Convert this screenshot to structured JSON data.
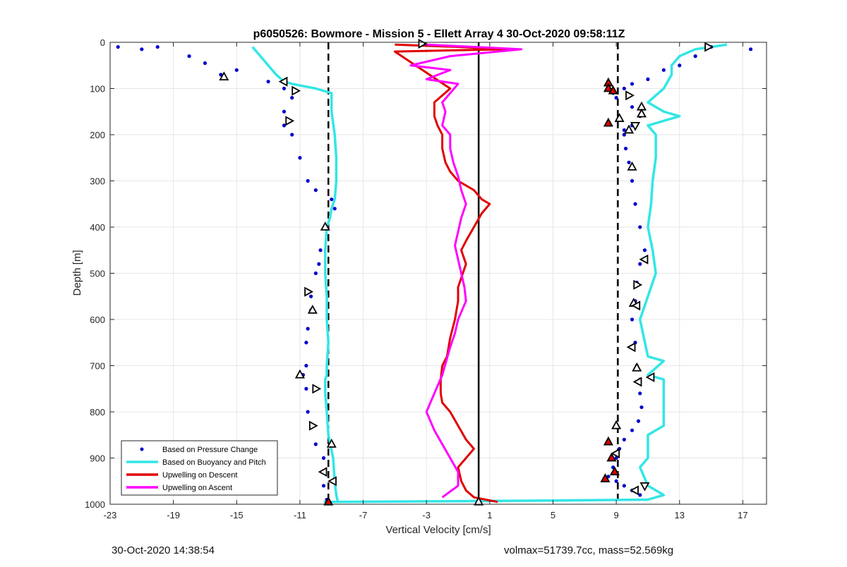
{
  "chart_data": {
    "type": "scatter",
    "title": "p6050526: Bowmore - Mission 5 - Ellett Array 4 30-Oct-2020 09:58:11Z",
    "xlabel": "Vertical Velocity [cm/s]",
    "ylabel": "Depth [m]",
    "xlim": [
      -23,
      18.5
    ],
    "ylim": [
      1000,
      0
    ],
    "y_reversed": true,
    "xticks": [
      "-23",
      "-19",
      "-15",
      "-11",
      "-7",
      "-3",
      "1",
      "5",
      "9",
      "13",
      "17"
    ],
    "yticks": [
      "0",
      "100",
      "200",
      "300",
      "400",
      "500",
      "600",
      "700",
      "800",
      "900",
      "1000"
    ],
    "grid": true,
    "legend_position": "bottom-left",
    "legend": [
      {
        "label": "Based on Pressure Change",
        "color": "#0000cd",
        "marker": "point"
      },
      {
        "label": "Based on Buoyancy and Pitch",
        "color": "#33e6e6",
        "marker": "line"
      },
      {
        "label": "Upwelling on Descent",
        "color": "#e00000",
        "marker": "line"
      },
      {
        "label": "Upwelling on Ascent",
        "color": "#ff00ff",
        "marker": "line"
      }
    ],
    "reference_lines": [
      {
        "x": 0.3,
        "style": "solid",
        "color": "#000000"
      },
      {
        "x": -9.2,
        "style": "dashed",
        "color": "#000000"
      },
      {
        "x": 9.1,
        "style": "dashed",
        "color": "#000000"
      }
    ],
    "series": [
      {
        "name": "Based on Buoyancy and Pitch",
        "profile": "descent",
        "color": "#33e6e6",
        "x": [
          -14.0,
          -13.5,
          -13.0,
          -12.5,
          -12.0,
          -11.5,
          -10.0,
          -9.0,
          -9.0,
          -8.8,
          -8.7,
          -8.7,
          -8.8,
          -9.0,
          -9.1,
          -9.3,
          -9.4,
          -9.4,
          -9.3,
          -9.3,
          -9.2,
          -9.3,
          -9.3,
          -9.4,
          -9.4,
          -9.3,
          -9.2,
          -8.9,
          -8.8,
          -8.7,
          -8.6
        ],
        "y": [
          10,
          30,
          50,
          70,
          85,
          90,
          100,
          110,
          150,
          200,
          250,
          300,
          340,
          360,
          380,
          400,
          450,
          500,
          550,
          600,
          650,
          700,
          720,
          730,
          760,
          800,
          850,
          900,
          950,
          980,
          995
        ]
      },
      {
        "name": "Based on Buoyancy and Pitch",
        "profile": "ascent",
        "color": "#33e6e6",
        "x": [
          16.0,
          14.0,
          13.0,
          12.5,
          12.5,
          12.0,
          11.0,
          12.0,
          13.0,
          11.0,
          11.5,
          11.5,
          11.3,
          11.2,
          11.0,
          11.3,
          11.5,
          11.0,
          10.5,
          11.0,
          12.0,
          11.0,
          12.0,
          12.0,
          12.0,
          11.0,
          11.0,
          10.5,
          11.0,
          12.0,
          11.0,
          5.0,
          1.0,
          -9.5
        ],
        "y": [
          5,
          15,
          30,
          50,
          70,
          100,
          130,
          150,
          160,
          180,
          200,
          250,
          300,
          350,
          400,
          450,
          500,
          550,
          600,
          680,
          690,
          720,
          730,
          780,
          830,
          850,
          900,
          920,
          960,
          980,
          990,
          992,
          993,
          995
        ]
      },
      {
        "name": "Based on Pressure Change",
        "profile": "descent",
        "color": "#0000cd",
        "x": [
          -22.5,
          -21.0,
          -20.0,
          -18.0,
          -17.0,
          -16.0,
          -15.0,
          -13.0,
          -12.0,
          -11.5,
          -12.0,
          -12.0,
          -11.5,
          -11.0,
          -10.5,
          -10.0,
          -9.0,
          -8.8,
          -9.3,
          -9.7,
          -9.8,
          -10.0,
          -10.3,
          -10.3,
          -10.5,
          -10.6,
          -10.6,
          -10.8,
          -10.6,
          -10.5,
          -10.2,
          -10.0,
          -9.5,
          -9.5,
          -9.5,
          -9.3
        ],
        "y": [
          10,
          15,
          10,
          30,
          45,
          70,
          60,
          85,
          100,
          120,
          150,
          180,
          200,
          250,
          300,
          320,
          340,
          360,
          400,
          450,
          480,
          500,
          550,
          580,
          620,
          650,
          700,
          720,
          750,
          800,
          830,
          870,
          900,
          930,
          960,
          990
        ]
      },
      {
        "name": "Based on Pressure Change",
        "profile": "ascent",
        "color": "#0000cd",
        "x": [
          17.5,
          15.0,
          14.0,
          13.0,
          12.0,
          11.0,
          10.0,
          9.5,
          8.8,
          9.0,
          10.0,
          10.5,
          10.0,
          9.5,
          9.5,
          9.6,
          9.8,
          10.0,
          10.2,
          10.5,
          10.8,
          10.5,
          10.3,
          10.2,
          10.0,
          10.2,
          10.3,
          10.5,
          10.5,
          10.6,
          10.4,
          10.0,
          9.5,
          9.2,
          9.0,
          8.8,
          8.5,
          9.0,
          9.5,
          10.0,
          10.5
        ],
        "y": [
          15,
          10,
          30,
          50,
          60,
          80,
          90,
          100,
          110,
          120,
          140,
          160,
          180,
          190,
          200,
          230,
          260,
          300,
          350,
          400,
          450,
          480,
          520,
          560,
          600,
          650,
          700,
          730,
          760,
          790,
          820,
          840,
          860,
          880,
          900,
          920,
          940,
          950,
          960,
          970,
          980
        ]
      },
      {
        "name": "Upwelling on Descent",
        "color": "#e00000",
        "x": [
          -5.0,
          -1.0,
          2.0,
          -5.0,
          -1.5,
          -2.5,
          -2.5,
          -2.3,
          -2.0,
          -2.0,
          -1.8,
          -1.5,
          -1.0,
          0.0,
          0.5,
          1.0,
          0.5,
          0.0,
          -0.5,
          -0.8,
          -0.5,
          -0.8,
          -1.0,
          -1.0,
          -1.2,
          -1.5,
          -1.7,
          -2.0,
          -2.1,
          -2.1,
          -2.0,
          -1.5,
          -1.0,
          -0.5,
          0.0,
          -0.5,
          -1.0,
          -0.8,
          -0.5,
          0.0,
          1.5
        ],
        "y": [
          5,
          10,
          15,
          20,
          100,
          130,
          160,
          180,
          200,
          230,
          260,
          280,
          300,
          320,
          340,
          350,
          370,
          400,
          430,
          450,
          480,
          510,
          530,
          560,
          600,
          640,
          680,
          700,
          730,
          760,
          780,
          800,
          830,
          860,
          880,
          900,
          920,
          950,
          970,
          985,
          995
        ]
      },
      {
        "name": "Upwelling on Ascent",
        "color": "#ff00ff",
        "x": [
          -3.0,
          0.0,
          3.0,
          -1.5,
          -4.0,
          -1.5,
          -3.0,
          -1.0,
          -1.5,
          -2.0,
          -1.8,
          -2.0,
          -1.5,
          -1.5,
          -1.3,
          -1.0,
          -0.8,
          -0.5,
          -0.8,
          -1.0,
          -1.2,
          -1.0,
          -0.8,
          -0.6,
          -0.5,
          -1.0,
          -1.2,
          -1.5,
          -2.0,
          -2.5,
          -3.0,
          -2.5,
          -2.0,
          -1.5,
          -1.0,
          -1.0,
          -2.0
        ],
        "y": [
          5,
          10,
          15,
          30,
          50,
          60,
          80,
          90,
          110,
          130,
          150,
          180,
          200,
          230,
          260,
          290,
          320,
          350,
          380,
          410,
          440,
          470,
          500,
          530,
          560,
          600,
          630,
          660,
          720,
          760,
          800,
          840,
          870,
          900,
          930,
          960,
          985
        ]
      }
    ],
    "markers": [
      {
        "x": -3.3,
        "y": 3,
        "shape": "triangle-right",
        "face": "white"
      },
      {
        "x": -15.8,
        "y": 75,
        "shape": "triangle-up",
        "face": "white"
      },
      {
        "x": -12.0,
        "y": 85,
        "shape": "triangle-left",
        "face": "white"
      },
      {
        "x": -11.3,
        "y": 105,
        "shape": "triangle-right",
        "face": "white"
      },
      {
        "x": -11.7,
        "y": 170,
        "shape": "triangle-right",
        "face": "white"
      },
      {
        "x": -9.4,
        "y": 400,
        "shape": "triangle-up",
        "face": "white"
      },
      {
        "x": -10.5,
        "y": 540,
        "shape": "triangle-right",
        "face": "white"
      },
      {
        "x": -10.2,
        "y": 580,
        "shape": "triangle-up",
        "face": "white"
      },
      {
        "x": -11.0,
        "y": 720,
        "shape": "triangle-up",
        "face": "white"
      },
      {
        "x": -10.0,
        "y": 750,
        "shape": "triangle-right",
        "face": "white"
      },
      {
        "x": -10.2,
        "y": 830,
        "shape": "triangle-right",
        "face": "white"
      },
      {
        "x": -9.0,
        "y": 870,
        "shape": "triangle-up",
        "face": "white"
      },
      {
        "x": -9.5,
        "y": 930,
        "shape": "triangle-left",
        "face": "white"
      },
      {
        "x": -8.9,
        "y": 950,
        "shape": "triangle-left",
        "face": "white"
      },
      {
        "x": -9.2,
        "y": 995,
        "shape": "triangle-up",
        "face": "red"
      },
      {
        "x": 0.3,
        "y": 995,
        "shape": "triangle-up",
        "face": "white"
      },
      {
        "x": 14.8,
        "y": 10,
        "shape": "triangle-right",
        "face": "white"
      },
      {
        "x": 8.5,
        "y": 88,
        "shape": "triangle-up",
        "face": "red"
      },
      {
        "x": 8.5,
        "y": 100,
        "shape": "triangle-up",
        "face": "red"
      },
      {
        "x": 8.8,
        "y": 105,
        "shape": "triangle-up",
        "face": "red"
      },
      {
        "x": 9.8,
        "y": 115,
        "shape": "triangle-right",
        "face": "white"
      },
      {
        "x": 10.6,
        "y": 140,
        "shape": "triangle-up",
        "face": "white"
      },
      {
        "x": 10.6,
        "y": 155,
        "shape": "triangle-up",
        "face": "white"
      },
      {
        "x": 9.2,
        "y": 165,
        "shape": "triangle-up",
        "face": "white"
      },
      {
        "x": 8.5,
        "y": 175,
        "shape": "triangle-up",
        "face": "red"
      },
      {
        "x": 10.2,
        "y": 180,
        "shape": "triangle-down",
        "face": "white"
      },
      {
        "x": 9.8,
        "y": 190,
        "shape": "triangle-up",
        "face": "white"
      },
      {
        "x": 10.0,
        "y": 270,
        "shape": "triangle-up",
        "face": "white"
      },
      {
        "x": 10.8,
        "y": 470,
        "shape": "triangle-left",
        "face": "white"
      },
      {
        "x": 10.3,
        "y": 525,
        "shape": "triangle-right",
        "face": "white"
      },
      {
        "x": 10.1,
        "y": 565,
        "shape": "triangle-up",
        "face": "white"
      },
      {
        "x": 10.3,
        "y": 570,
        "shape": "triangle-left",
        "face": "white"
      },
      {
        "x": 10.0,
        "y": 660,
        "shape": "triangle-left",
        "face": "white"
      },
      {
        "x": 10.3,
        "y": 705,
        "shape": "triangle-up",
        "face": "white"
      },
      {
        "x": 11.2,
        "y": 725,
        "shape": "triangle-left",
        "face": "white"
      },
      {
        "x": 10.4,
        "y": 735,
        "shape": "triangle-left",
        "face": "white"
      },
      {
        "x": 9.0,
        "y": 830,
        "shape": "triangle-up",
        "face": "white"
      },
      {
        "x": 8.5,
        "y": 865,
        "shape": "triangle-up",
        "face": "red"
      },
      {
        "x": 9.0,
        "y": 890,
        "shape": "triangle-left",
        "face": "white"
      },
      {
        "x": 8.7,
        "y": 900,
        "shape": "triangle-up",
        "face": "red"
      },
      {
        "x": 8.9,
        "y": 930,
        "shape": "triangle-up",
        "face": "red"
      },
      {
        "x": 8.3,
        "y": 945,
        "shape": "triangle-up",
        "face": "red"
      },
      {
        "x": 10.8,
        "y": 960,
        "shape": "triangle-down",
        "face": "white"
      },
      {
        "x": 10.2,
        "y": 970,
        "shape": "triangle-left",
        "face": "white"
      }
    ]
  },
  "footer": {
    "timestamp": "30-Oct-2020 14:38:54",
    "vehicle": "volmax=51739.7cc, mass=52.569kg"
  }
}
